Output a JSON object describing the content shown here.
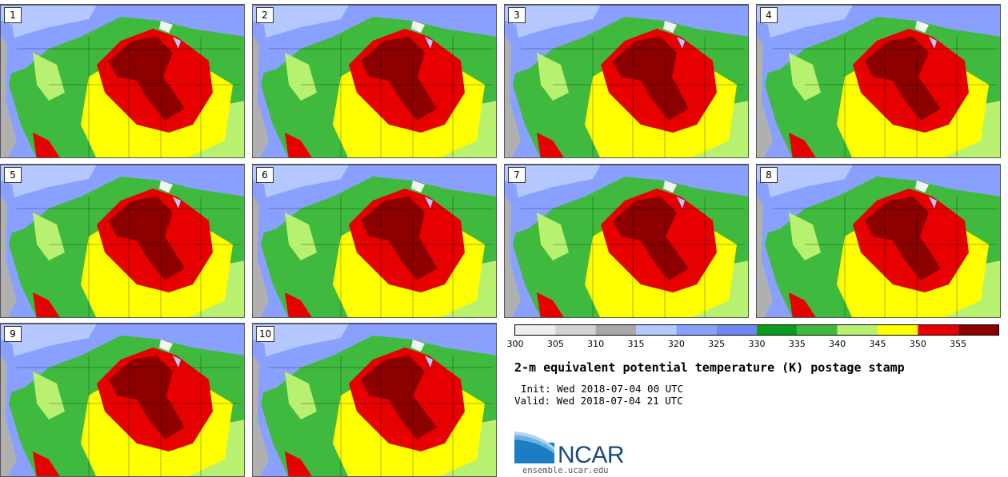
{
  "panels": [
    {
      "label": "1"
    },
    {
      "label": "2"
    },
    {
      "label": "3"
    },
    {
      "label": "4"
    },
    {
      "label": "5"
    },
    {
      "label": "6"
    },
    {
      "label": "7"
    },
    {
      "label": "8"
    },
    {
      "label": "9"
    },
    {
      "label": "10"
    }
  ],
  "colorbar": {
    "ticks": [
      "300",
      "305",
      "310",
      "315",
      "320",
      "325",
      "330",
      "335",
      "340",
      "345",
      "350",
      "355"
    ],
    "colors": [
      "#eeeeee",
      "#d2d2d2",
      "#a8a8a8",
      "#b4c8ff",
      "#8aa0ff",
      "#6e88f5",
      "#0b9e1c",
      "#3fba3f",
      "#b8f070",
      "#ffff00",
      "#e60000",
      "#8c0000"
    ]
  },
  "title": "2-m equivalent potential temperature (K) postage stamp",
  "init": "Init: Wed 2018-07-04 00 UTC",
  "valid": "Valid: Wed 2018-07-04 21 UTC",
  "logo": {
    "name": "NCAR",
    "url": "ensemble.ucar.edu"
  },
  "map_colors": {
    "ocean_gray": "#b0b0b0",
    "cool_blue": "#8aa0ff",
    "light_blue": "#b4c8ff",
    "dark_green": "#0b9e1c",
    "green": "#3fba3f",
    "light_green": "#b8f070",
    "yellow": "#ffff00",
    "red": "#e60000",
    "dark_red": "#8c0000"
  }
}
